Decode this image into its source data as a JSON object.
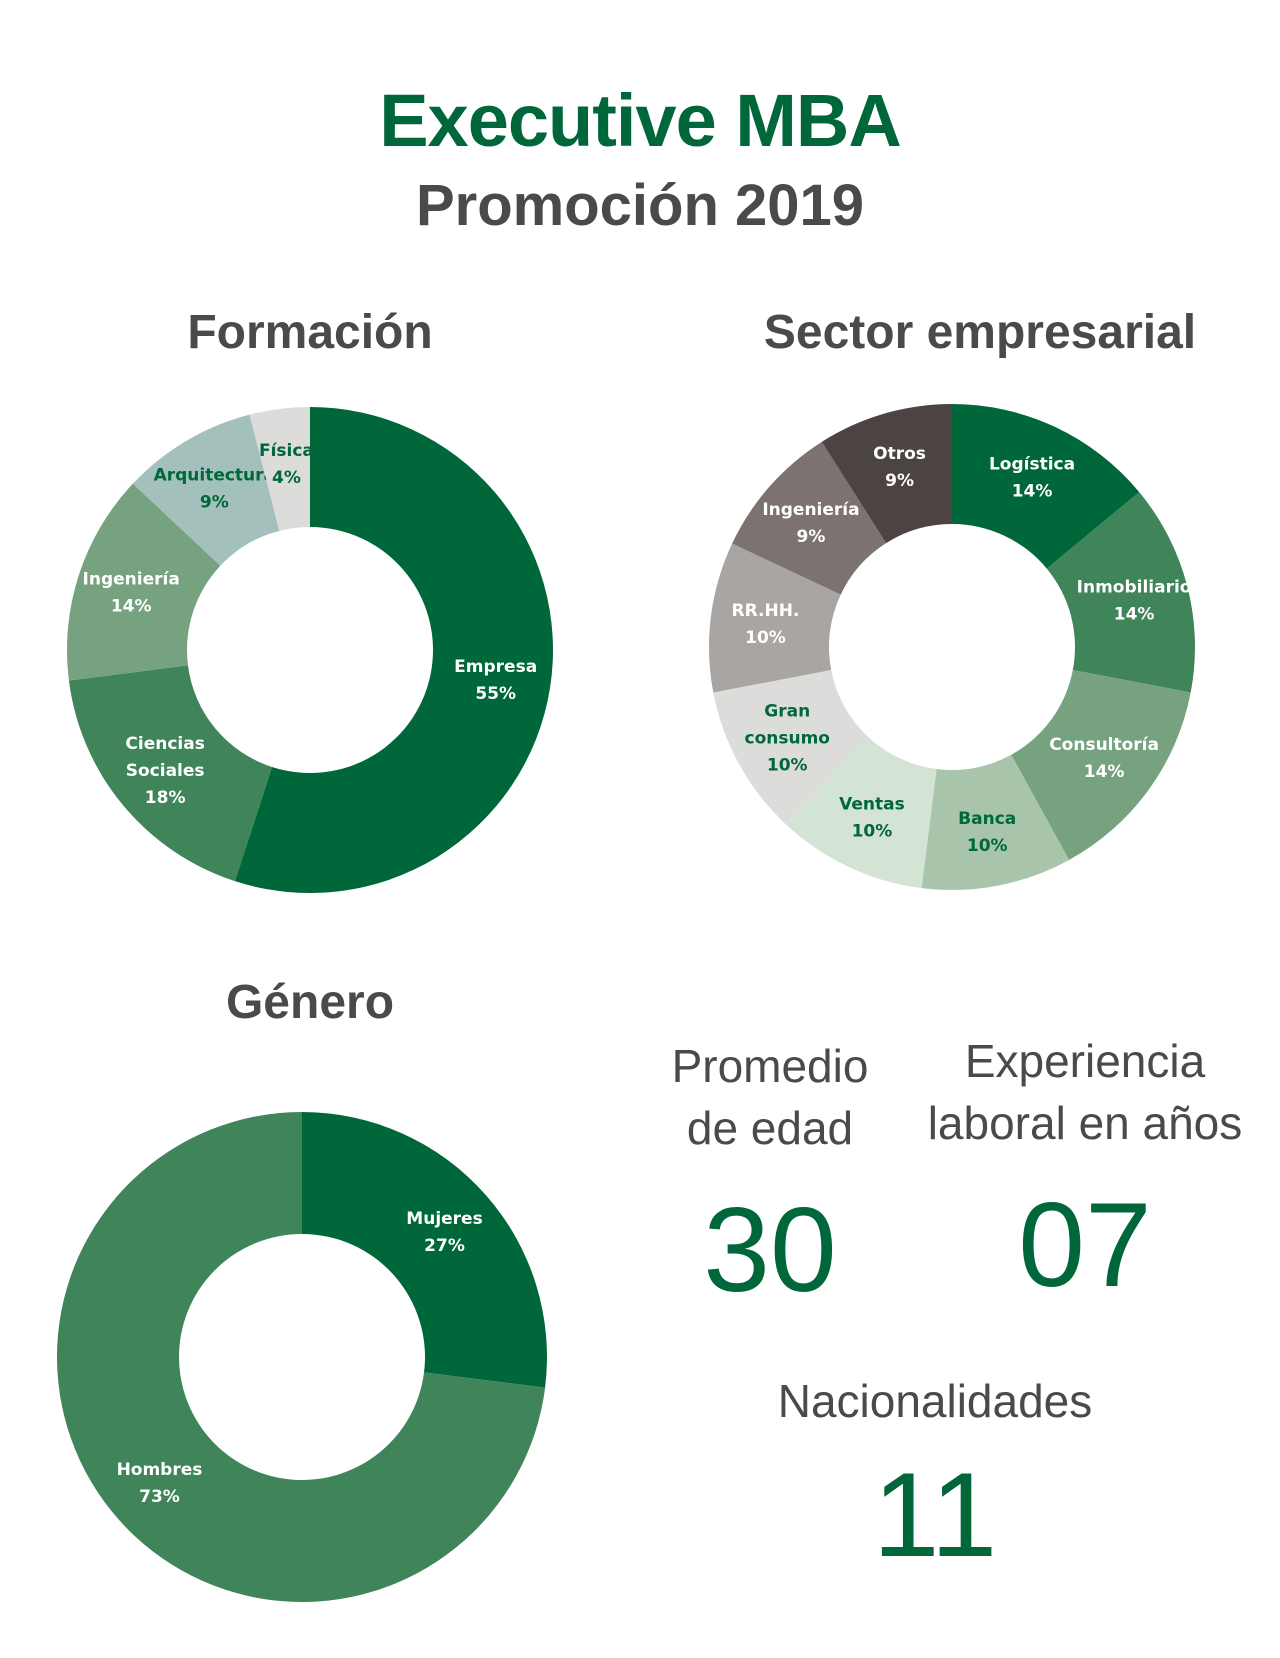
{
  "header": {
    "title": "Executive MBA",
    "subtitle": "Promoción 2019"
  },
  "stats": {
    "age_label_1": "Promedio",
    "age_label_2": "de edad",
    "age_value": "30",
    "exp_label_1": "Experiencia",
    "exp_label_2": "laboral en años",
    "exp_value": "07",
    "nat_label": "Nacionalidades",
    "nat_value": "11"
  },
  "chart_data": [
    {
      "type": "pie",
      "title": "Formación",
      "slices": [
        {
          "label": [
            "Empresa"
          ],
          "value": 55,
          "display": "55%",
          "color": "#00673a",
          "text_color": "#ffffff"
        },
        {
          "label": [
            "Ciencias",
            "Sociales"
          ],
          "value": 18,
          "display": "18%",
          "color": "#40845a",
          "text_color": "#ffffff"
        },
        {
          "label": [
            "Ingeniería"
          ],
          "value": 14,
          "display": "14%",
          "color": "#76a27f",
          "text_color": "#ffffff"
        },
        {
          "label": [
            "Arquitectura"
          ],
          "value": 9,
          "display": "9%",
          "color": "#a4c0bc",
          "text_color": "#00673a"
        },
        {
          "label": [
            "Física"
          ],
          "value": 4,
          "display": "4%",
          "color": "#dcdcdb",
          "text_color": "#00673a"
        }
      ]
    },
    {
      "type": "pie",
      "title": "Sector empresarial",
      "slices": [
        {
          "label": [
            "Logística"
          ],
          "value": 14,
          "display": "14%",
          "color": "#00673a",
          "text_color": "#ffffff"
        },
        {
          "label": [
            "Inmobiliario"
          ],
          "value": 14,
          "display": "14%",
          "color": "#40845a",
          "text_color": "#ffffff"
        },
        {
          "label": [
            "Consultoría"
          ],
          "value": 14,
          "display": "14%",
          "color": "#76a27f",
          "text_color": "#ffffff"
        },
        {
          "label": [
            "Banca"
          ],
          "value": 10,
          "display": "10%",
          "color": "#a8c4aa",
          "text_color": "#00673a"
        },
        {
          "label": [
            "Ventas"
          ],
          "value": 10,
          "display": "10%",
          "color": "#d3e3d4",
          "text_color": "#00673a"
        },
        {
          "label": [
            "Gran",
            "consumo"
          ],
          "value": 10,
          "display": "10%",
          "color": "#dcdcdb",
          "text_color": "#00673a"
        },
        {
          "label": [
            "RR.HH."
          ],
          "value": 10,
          "display": "10%",
          "color": "#a9a5a3",
          "text_color": "#ffffff"
        },
        {
          "label": [
            "Ingeniería"
          ],
          "value": 9,
          "display": "9%",
          "color": "#7c7371",
          "text_color": "#ffffff"
        },
        {
          "label": [
            "Otros"
          ],
          "value": 9,
          "display": "9%",
          "color": "#4c4442",
          "text_color": "#ffffff"
        }
      ]
    },
    {
      "type": "pie",
      "title": "Género",
      "slices": [
        {
          "label": [
            "Mujeres"
          ],
          "value": 27,
          "display": "27%",
          "color": "#00673a",
          "text_color": "#ffffff"
        },
        {
          "label": [
            "Hombres"
          ],
          "value": 73,
          "display": "73%",
          "color": "#40845a",
          "text_color": "#ffffff"
        }
      ]
    }
  ]
}
